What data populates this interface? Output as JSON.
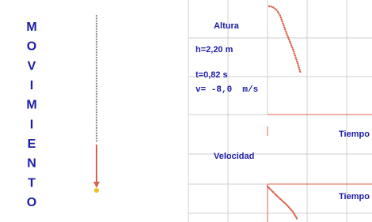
{
  "title_letters": [
    "M",
    "O",
    "V",
    "I",
    "M",
    "I",
    "E",
    "N",
    "T",
    "O"
  ],
  "panel": {
    "height_label": "Altura",
    "height_value": "h=2,20 m",
    "time_value": "t=0,82 s",
    "velocity_value": "v= -8,0  m/s",
    "top_axis_label": "Tiempo",
    "velocity_label": "Velocidad",
    "bottom_axis_label": "Tiempo"
  }
}
